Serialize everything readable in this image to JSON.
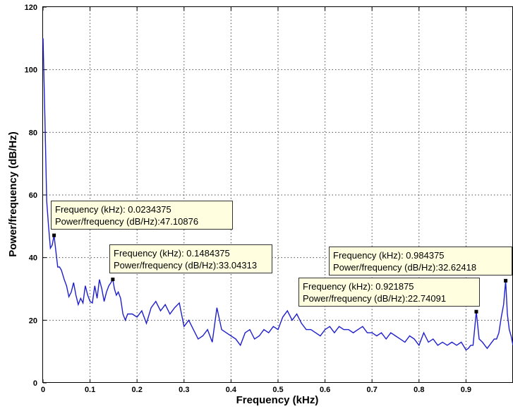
{
  "chart_data": {
    "type": "line",
    "title": "",
    "xlabel": "Frequency (kHz)",
    "ylabel": "Power/frequency (dB/Hz)",
    "xlim": [
      0,
      1
    ],
    "ylim": [
      0,
      120
    ],
    "x_ticks": [
      "0",
      "0.1",
      "0.2",
      "0.3",
      "0.4",
      "0.5",
      "0.6",
      "0.7",
      "0.8",
      "0.9"
    ],
    "y_ticks": [
      "0",
      "20",
      "40",
      "60",
      "80",
      "100",
      "120"
    ],
    "grid": true,
    "line_color": "#1f1fcc",
    "series": [
      {
        "x": [
          0.0,
          0.0039,
          0.0078,
          0.0117,
          0.0156,
          0.0195,
          0.0234,
          0.0273,
          0.0313,
          0.0352,
          0.0391,
          0.045,
          0.05,
          0.055,
          0.06,
          0.065,
          0.07,
          0.075,
          0.08,
          0.085,
          0.09,
          0.095,
          0.1,
          0.105,
          0.11,
          0.115,
          0.12,
          0.125,
          0.13,
          0.135,
          0.14,
          0.1445,
          0.1484,
          0.152,
          0.156,
          0.16,
          0.165,
          0.17,
          0.175,
          0.18,
          0.19,
          0.2,
          0.21,
          0.22,
          0.23,
          0.24,
          0.25,
          0.26,
          0.27,
          0.28,
          0.29,
          0.3,
          0.31,
          0.32,
          0.33,
          0.34,
          0.35,
          0.36,
          0.37,
          0.38,
          0.39,
          0.4,
          0.41,
          0.42,
          0.43,
          0.44,
          0.45,
          0.46,
          0.47,
          0.48,
          0.49,
          0.5,
          0.51,
          0.52,
          0.53,
          0.54,
          0.55,
          0.56,
          0.57,
          0.58,
          0.59,
          0.6,
          0.61,
          0.62,
          0.63,
          0.64,
          0.65,
          0.66,
          0.67,
          0.68,
          0.69,
          0.7,
          0.71,
          0.72,
          0.73,
          0.74,
          0.75,
          0.76,
          0.77,
          0.78,
          0.79,
          0.8,
          0.81,
          0.82,
          0.83,
          0.84,
          0.85,
          0.86,
          0.87,
          0.88,
          0.89,
          0.9,
          0.905,
          0.91,
          0.915,
          0.9219,
          0.928,
          0.935,
          0.94,
          0.945,
          0.95,
          0.955,
          0.96,
          0.965,
          0.97,
          0.975,
          0.98,
          0.9844,
          0.988,
          0.992,
          0.996,
          1.0
        ],
        "y": [
          110,
          85,
          58,
          50,
          43,
          44,
          47.11,
          42,
          37,
          37,
          36,
          33,
          31,
          27.5,
          29,
          32,
          28,
          25,
          27,
          25.5,
          31,
          28,
          26,
          25.5,
          31,
          27,
          33,
          30,
          26,
          29,
          31,
          32,
          33.04,
          30,
          28,
          29,
          27,
          22,
          20,
          22,
          22,
          21,
          23,
          19,
          24,
          26,
          23,
          25,
          22,
          24,
          25.5,
          18,
          20,
          17,
          14,
          15,
          17,
          13,
          24,
          17,
          16,
          15,
          14,
          12,
          16,
          17,
          14,
          15,
          17,
          16,
          18,
          17,
          21,
          23,
          20,
          22,
          19,
          17,
          17,
          16,
          15,
          17,
          18,
          16,
          18,
          17,
          17,
          16,
          17,
          18,
          16,
          16,
          15,
          16,
          14,
          16,
          15,
          14,
          13,
          15,
          14,
          12,
          16,
          13,
          14,
          12,
          13,
          12,
          13,
          12,
          13,
          10.5,
          11,
          12,
          12,
          22.74,
          14,
          13,
          12,
          11,
          12,
          13,
          14,
          14,
          16,
          21,
          25,
          32.62,
          22,
          17,
          15,
          12
        ]
      }
    ],
    "annotations": [
      {
        "line1": "Frequency (kHz): 0.0234375",
        "line2": "Power/frequency (dB/Hz):47.10876"
      },
      {
        "line1": "Frequency (kHz): 0.1484375",
        "line2": "Power/frequency (dB/Hz):33.04313"
      },
      {
        "line1": "Frequency (kHz): 0.984375",
        "line2": "Power/frequency (dB/Hz):32.62418"
      },
      {
        "line1": "Frequency (kHz): 0.921875",
        "line2": "Power/frequency (dB/Hz):22.74091"
      }
    ]
  }
}
